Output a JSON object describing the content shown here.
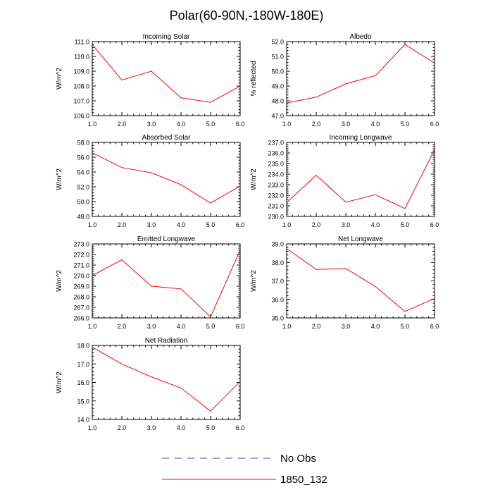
{
  "figure_title": "Polar(60-90N,-180W-180E)",
  "legend": [
    {
      "label": "No Obs",
      "style": "dashed",
      "color": "#4444aa"
    },
    {
      "label": "1850_132",
      "style": "solid",
      "color": "#ff0000"
    }
  ],
  "series_color": "#ff0000",
  "chart_data": [
    {
      "type": "line",
      "title": "Incoming Solar",
      "ylabel": "W/m^2",
      "x": [
        1,
        2,
        3,
        4,
        5,
        6
      ],
      "series": [
        {
          "name": "1850_132",
          "values": [
            110.8,
            108.4,
            109.0,
            107.2,
            106.9,
            108.0
          ]
        }
      ],
      "ylim": [
        106,
        111
      ],
      "yticks": [
        "106.0",
        "107.0",
        "108.0",
        "109.0",
        "110.0",
        "111.0"
      ],
      "xticks": [
        "1.0",
        "2.0",
        "3.0",
        "4.0",
        "5.0",
        "6.0"
      ]
    },
    {
      "type": "line",
      "title": "Albedo",
      "ylabel": "% reflected",
      "x": [
        1,
        2,
        3,
        4,
        5,
        6
      ],
      "series": [
        {
          "name": "1850_132",
          "values": [
            47.85,
            48.25,
            49.15,
            49.7,
            51.8,
            50.55
          ]
        }
      ],
      "ylim": [
        47,
        52
      ],
      "yticks": [
        "47.0",
        "48.0",
        "49.0",
        "50.0",
        "51.0",
        "52.0"
      ],
      "xticks": [
        "1.0",
        "2.0",
        "3.0",
        "4.0",
        "5.0",
        "6.0"
      ]
    },
    {
      "type": "line",
      "title": "Absorbed Solar",
      "ylabel": "W/m^2",
      "x": [
        1,
        2,
        3,
        4,
        5,
        6
      ],
      "series": [
        {
          "name": "1850_132",
          "values": [
            56.6,
            54.6,
            53.9,
            52.3,
            49.8,
            52.1
          ]
        }
      ],
      "ylim": [
        48,
        58
      ],
      "yticks": [
        "48.0",
        "50.0",
        "52.0",
        "54.0",
        "56.0",
        "58.0"
      ],
      "xticks": [
        "1.0",
        "2.0",
        "3.0",
        "4.0",
        "5.0",
        "6.0"
      ]
    },
    {
      "type": "line",
      "title": "Incoming Longwave",
      "ylabel": "W/m^2",
      "x": [
        1,
        2,
        3,
        4,
        5,
        6
      ],
      "series": [
        {
          "name": "1850_132",
          "values": [
            231.3,
            233.9,
            231.35,
            232.05,
            230.75,
            236.3
          ]
        }
      ],
      "ylim": [
        230,
        237
      ],
      "yticks": [
        "230.0",
        "231.0",
        "232.0",
        "233.0",
        "234.0",
        "235.0",
        "236.0",
        "237.0"
      ],
      "xticks": [
        "1.0",
        "2.0",
        "3.0",
        "4.0",
        "5.0",
        "6.0"
      ]
    },
    {
      "type": "line",
      "title": "Emitted Longwave",
      "ylabel": "W/m^2",
      "x": [
        1,
        2,
        3,
        4,
        5,
        6
      ],
      "series": [
        {
          "name": "1850_132",
          "values": [
            270.0,
            271.5,
            269.0,
            268.75,
            266.1,
            272.4
          ]
        }
      ],
      "ylim": [
        266,
        273
      ],
      "yticks": [
        "266.0",
        "267.0",
        "268.0",
        "269.0",
        "270.0",
        "271.0",
        "272.0",
        "273.0"
      ],
      "xticks": [
        "1.0",
        "2.0",
        "3.0",
        "4.0",
        "5.0",
        "6.0"
      ]
    },
    {
      "type": "line",
      "title": "Net Longwave",
      "ylabel": "W/m^2",
      "x": [
        1,
        2,
        3,
        4,
        5,
        6
      ],
      "series": [
        {
          "name": "1850_132",
          "values": [
            38.75,
            37.62,
            37.67,
            36.7,
            35.35,
            36.05
          ]
        }
      ],
      "ylim": [
        35,
        39
      ],
      "yticks": [
        "35.0",
        "36.0",
        "37.0",
        "38.0",
        "39.0"
      ],
      "xticks": [
        "1.0",
        "2.0",
        "3.0",
        "4.0",
        "5.0",
        "6.0"
      ]
    },
    {
      "type": "line",
      "title": "Net Radiation",
      "ylabel": "W/m^2",
      "x": [
        1,
        2,
        3,
        4,
        5,
        6
      ],
      "series": [
        {
          "name": "1850_132",
          "values": [
            17.9,
            17.0,
            16.3,
            15.7,
            14.45,
            16.05
          ]
        }
      ],
      "ylim": [
        14,
        18
      ],
      "yticks": [
        "14.0",
        "15.0",
        "16.0",
        "17.0",
        "18.0"
      ],
      "xticks": [
        "1.0",
        "2.0",
        "3.0",
        "4.0",
        "5.0",
        "6.0"
      ]
    }
  ]
}
